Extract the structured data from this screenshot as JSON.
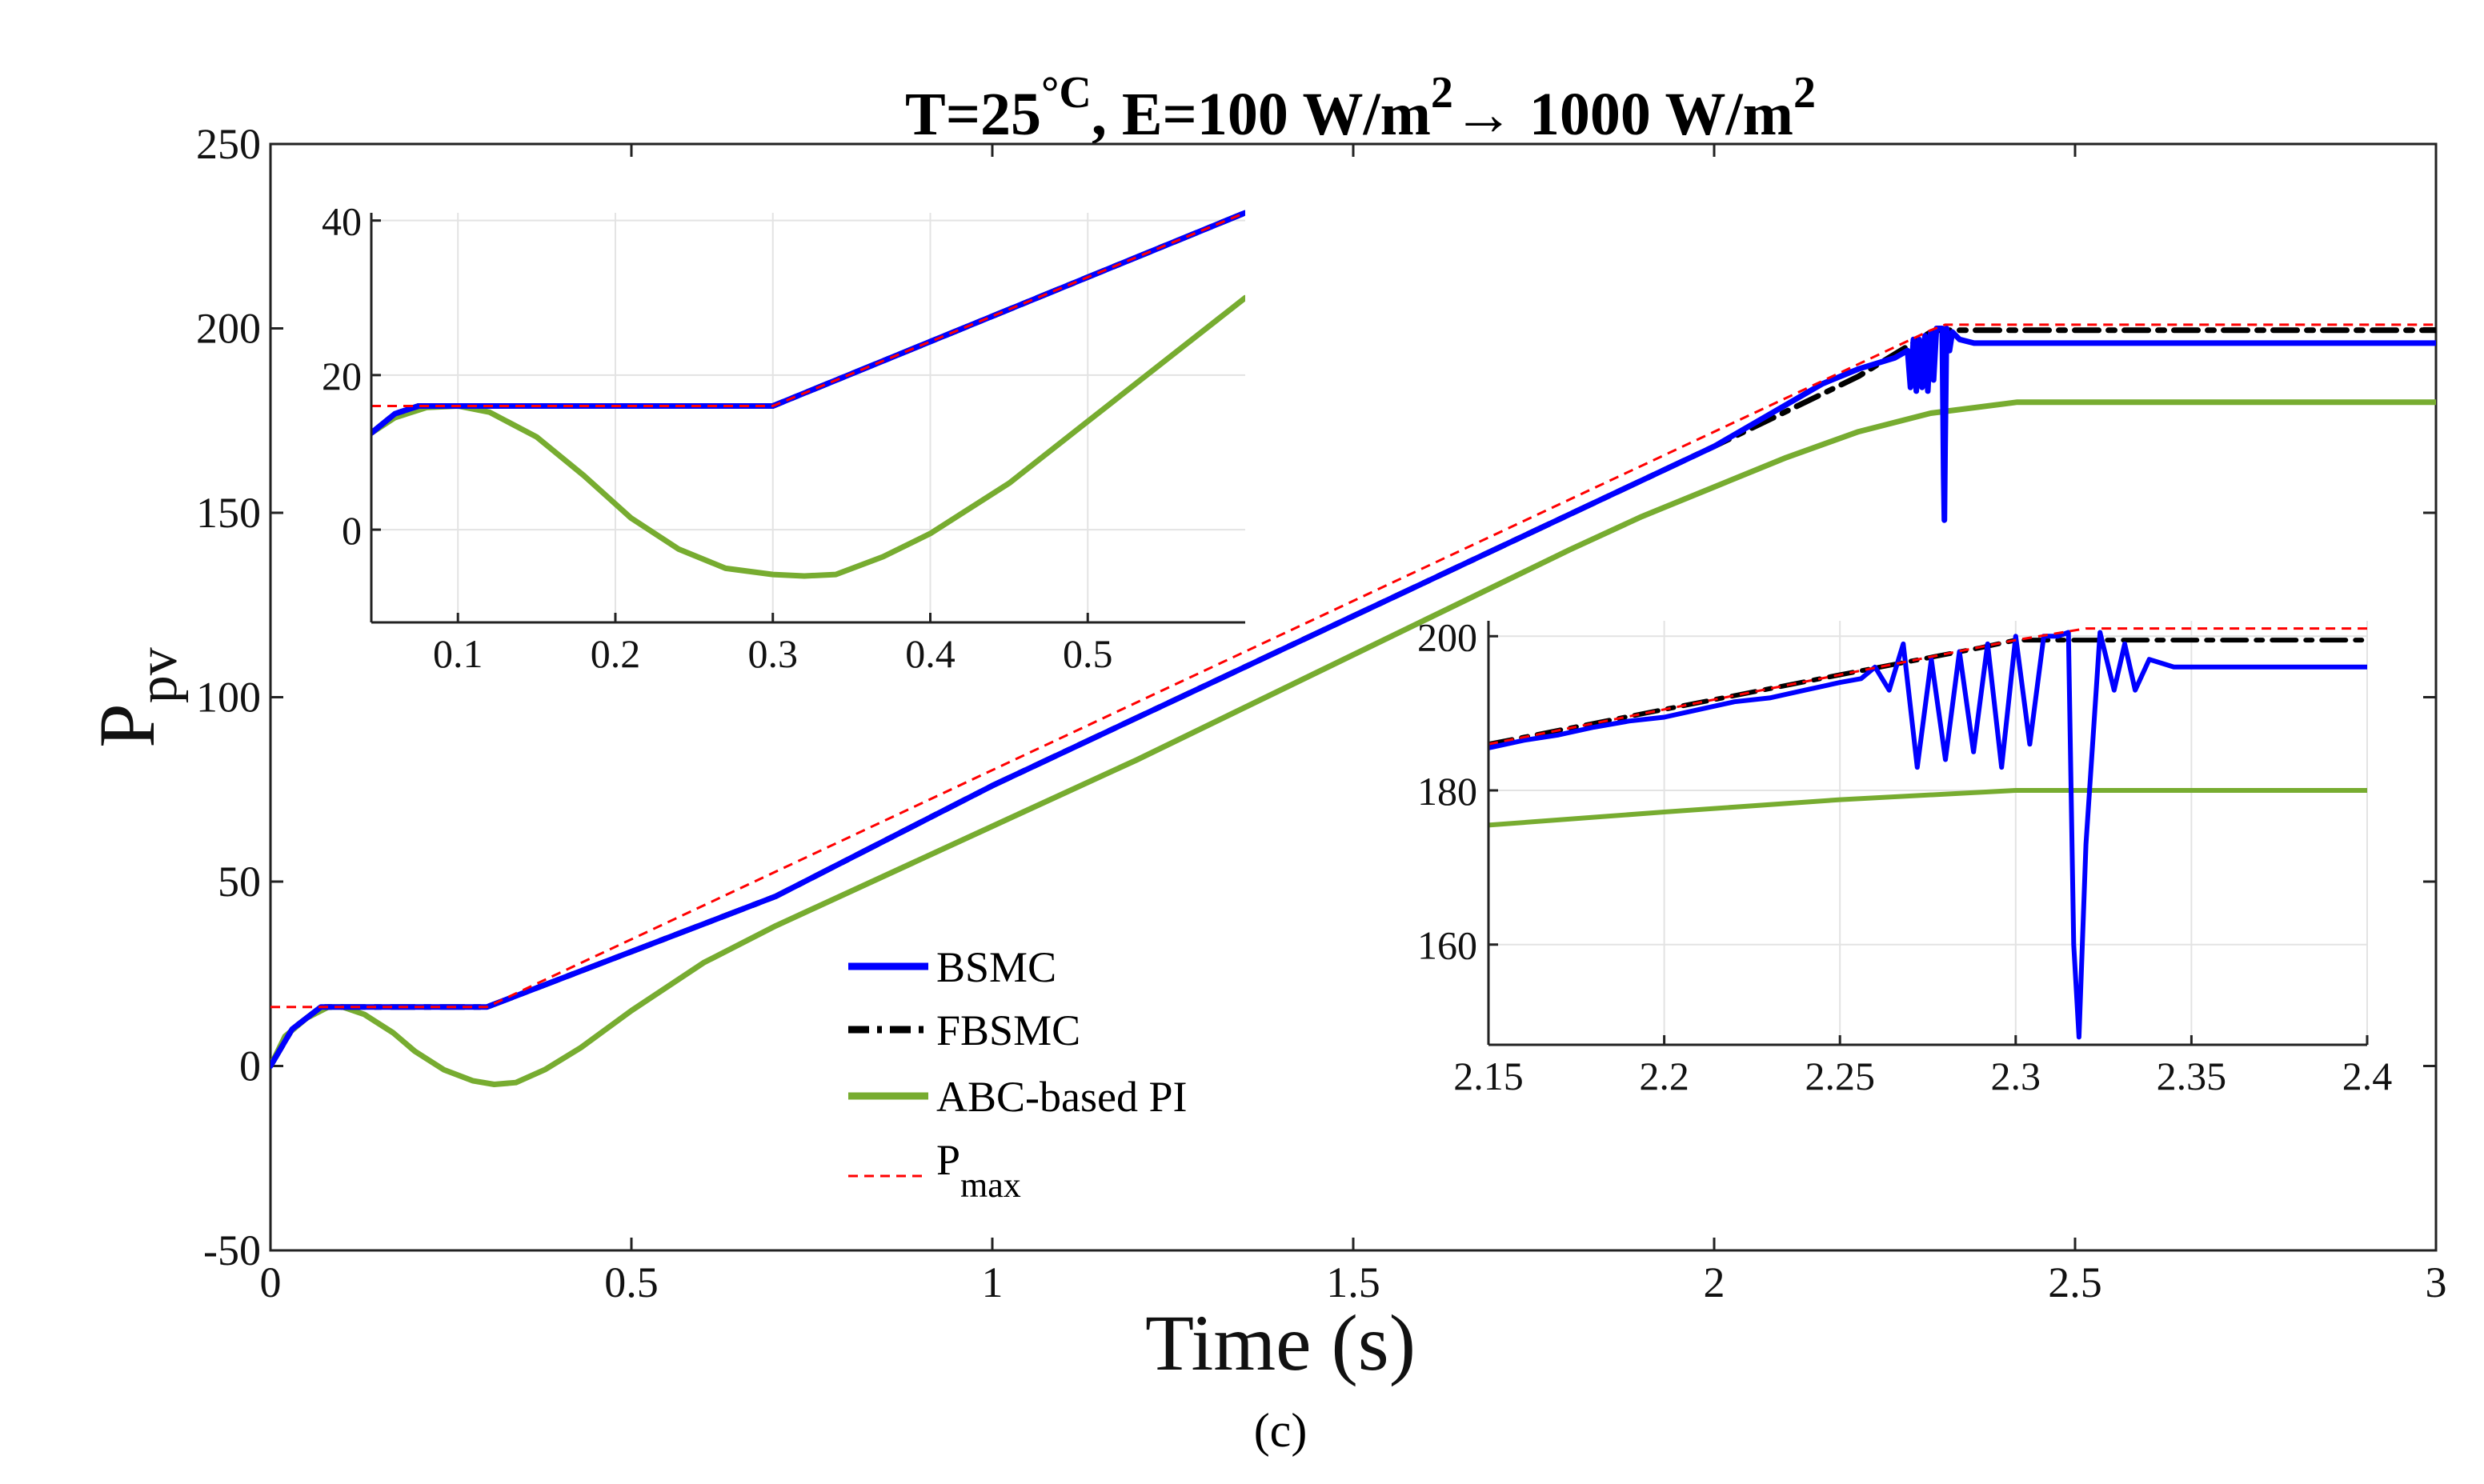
{
  "figure_caption": "(c)",
  "chart_data": [
    {
      "id": "main",
      "type": "line",
      "title_parts": {
        "t_prefix": "T=25",
        "t_unit": "°C",
        "e_prefix": ", E=100 W/m",
        "exp1": "2",
        "arrow": "→ 1000 W/m",
        "exp2": "2"
      },
      "xlabel": "Time (s)",
      "ylabel": "P",
      "ylabel_sub": "pv",
      "xlim": [
        0,
        3
      ],
      "ylim": [
        -50,
        250
      ],
      "xticks": [
        0,
        0.5,
        1,
        1.5,
        2,
        2.5,
        3
      ],
      "xtick_labels": [
        "0",
        "0.5",
        "1",
        "1.5",
        "2",
        "2.5",
        "3"
      ],
      "yticks": [
        -50,
        0,
        50,
        100,
        150,
        200,
        250
      ],
      "ytick_labels": [
        "-50",
        "0",
        "50",
        "100",
        "150",
        "200",
        "250"
      ],
      "legend_position": "center-left",
      "legend": [
        {
          "name": "BSMC",
          "color": "#0000ff"
        },
        {
          "name": "FBSMC",
          "color": "#000000"
        },
        {
          "name": "ABC-based PI",
          "color": "#77ac30"
        },
        {
          "name": "P",
          "sub": "max",
          "color": "#ff0000"
        }
      ],
      "series": [
        {
          "name": "ABC-based PI",
          "color": "#77ac30",
          "x": [
            0,
            0.02,
            0.05,
            0.08,
            0.1,
            0.13,
            0.17,
            0.2,
            0.24,
            0.28,
            0.31,
            0.34,
            0.38,
            0.43,
            0.5,
            0.6,
            0.7,
            0.8,
            1.0,
            1.2,
            1.4,
            1.6,
            1.8,
            1.9,
            2.0,
            2.1,
            2.2,
            2.3,
            2.42,
            2.6,
            3.0
          ],
          "y": [
            0,
            8,
            13,
            16,
            16,
            14,
            9,
            4,
            -1,
            -4,
            -5,
            -4.5,
            -1,
            5,
            15,
            28,
            38,
            47,
            65,
            83,
            102,
            121,
            140,
            149,
            157,
            165,
            172,
            177,
            180,
            180,
            180
          ]
        },
        {
          "name": "FBSMC",
          "color": "#000000",
          "x": [
            0,
            0.03,
            0.07,
            0.1,
            0.3,
            0.7,
            1.0,
            1.5,
            2.0,
            2.2,
            2.3,
            2.31,
            3.0
          ],
          "y": [
            0,
            10,
            16,
            16,
            16,
            46,
            76,
            122,
            168,
            187,
            199,
            199.5,
            199.5
          ]
        },
        {
          "name": "BSMC",
          "color": "#0000ff",
          "x": [
            0,
            0.03,
            0.07,
            0.1,
            0.3,
            0.7,
            1.0,
            1.5,
            2.0,
            2.15,
            2.2,
            2.25,
            2.268,
            2.272,
            2.276,
            2.28,
            2.284,
            2.288,
            2.292,
            2.296,
            2.3,
            2.304,
            2.308,
            2.312,
            2.316,
            2.318,
            2.319,
            2.32,
            2.322,
            2.326,
            2.33,
            2.34,
            2.36,
            3.0
          ],
          "y": [
            0,
            10,
            16,
            16,
            16,
            46,
            76,
            122,
            168,
            185,
            189,
            192,
            194,
            184,
            197,
            183,
            197,
            184,
            198,
            183,
            199,
            186,
            200,
            200,
            200,
            160,
            148,
            168,
            200,
            194,
            199,
            197,
            196,
            196
          ]
        },
        {
          "name": "P_max",
          "color": "#ff0000",
          "dashed": true,
          "x": [
            0,
            0.3,
            2.3,
            2.32,
            3.0
          ],
          "y": [
            16,
            16,
            199.5,
            201,
            201
          ]
        }
      ]
    },
    {
      "id": "inset-left",
      "type": "line",
      "xlim": [
        0.045,
        0.6
      ],
      "ylim": [
        -12,
        41
      ],
      "xticks": [
        0.1,
        0.2,
        0.3,
        0.4,
        0.5
      ],
      "xtick_labels": [
        "0.1",
        "0.2",
        "0.3",
        "0.4",
        "0.5"
      ],
      "yticks": [
        0,
        20,
        40
      ],
      "ytick_labels": [
        "0",
        "20",
        "40"
      ],
      "series": [
        {
          "name": "ABC-based PI",
          "color": "#77ac30",
          "x": [
            0.045,
            0.06,
            0.08,
            0.1,
            0.12,
            0.15,
            0.18,
            0.21,
            0.24,
            0.27,
            0.3,
            0.32,
            0.34,
            0.37,
            0.4,
            0.45,
            0.5,
            0.55,
            0.6
          ],
          "y": [
            12.5,
            14.5,
            15.8,
            16,
            15.2,
            12,
            7,
            1.5,
            -2.5,
            -5,
            -5.8,
            -6,
            -5.8,
            -3.5,
            -0.5,
            6,
            14,
            22,
            30
          ]
        },
        {
          "name": "FBSMC",
          "color": "#000000",
          "x": [
            0.045,
            0.06,
            0.075,
            0.09,
            0.3,
            0.6
          ],
          "y": [
            12.5,
            15,
            16,
            16,
            16,
            41
          ]
        },
        {
          "name": "BSMC",
          "color": "#0000ff",
          "x": [
            0.045,
            0.06,
            0.075,
            0.09,
            0.3,
            0.6
          ],
          "y": [
            12.5,
            15,
            16,
            16,
            16,
            41
          ]
        },
        {
          "name": "P_max",
          "color": "#ff0000",
          "dashed": true,
          "x": [
            0.045,
            0.3,
            0.6
          ],
          "y": [
            16,
            16,
            41
          ]
        }
      ]
    },
    {
      "id": "inset-right",
      "type": "line",
      "xlim": [
        2.15,
        2.4
      ],
      "ylim": [
        147,
        202
      ],
      "xticks": [
        2.15,
        2.2,
        2.25,
        2.3,
        2.35,
        2.4
      ],
      "xtick_labels": [
        "2.15",
        "2.2",
        "2.25",
        "2.3",
        "2.35",
        "2.4"
      ],
      "yticks": [
        160,
        180,
        200
      ],
      "ytick_labels": [
        "160",
        "180",
        "200"
      ],
      "series": [
        {
          "name": "ABC-based PI",
          "color": "#77ac30",
          "x": [
            2.15,
            2.2,
            2.25,
            2.3,
            2.4
          ],
          "y": [
            175.5,
            177.2,
            178.8,
            180,
            180
          ]
        },
        {
          "name": "FBSMC",
          "color": "#000000",
          "x": [
            2.15,
            2.2,
            2.25,
            2.29,
            2.3,
            2.4
          ],
          "y": [
            186,
            190.5,
            195,
            198.5,
            199.5,
            199.5
          ]
        },
        {
          "name": "BSMC",
          "color": "#0000ff",
          "x": [
            2.15,
            2.16,
            2.17,
            2.18,
            2.19,
            2.2,
            2.21,
            2.22,
            2.23,
            2.24,
            2.25,
            2.256,
            2.26,
            2.264,
            2.268,
            2.272,
            2.276,
            2.28,
            2.284,
            2.288,
            2.292,
            2.296,
            2.3,
            2.304,
            2.308,
            2.312,
            2.315,
            2.3165,
            2.318,
            2.32,
            2.324,
            2.328,
            2.331,
            2.334,
            2.338,
            2.345,
            2.36,
            2.4
          ],
          "y": [
            185.5,
            186.5,
            187.2,
            188.2,
            189,
            189.5,
            190.5,
            191.5,
            192,
            193,
            194,
            194.5,
            196,
            193,
            199,
            183,
            197,
            184,
            198,
            185,
            199,
            183,
            200,
            186,
            200,
            200,
            200.5,
            160,
            148,
            173,
            200.5,
            193,
            199,
            193,
            197,
            196,
            196,
            196
          ]
        },
        {
          "name": "P_max",
          "color": "#ff0000",
          "dashed": true,
          "x": [
            2.15,
            2.3,
            2.32,
            2.4
          ],
          "y": [
            186,
            199.5,
            201,
            201
          ]
        }
      ]
    }
  ]
}
